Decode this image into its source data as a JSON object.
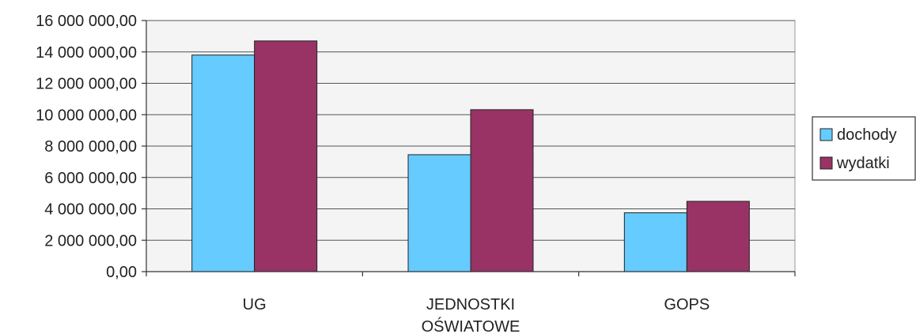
{
  "chart_data": {
    "type": "bar",
    "categories": [
      [
        "UG"
      ],
      [
        "JEDNOSTKI",
        "OŚWIATOWE"
      ],
      [
        "GOPS"
      ]
    ],
    "series": [
      {
        "name": "dochody",
        "values": [
          13800000,
          7450000,
          3750000
        ],
        "color": "#66ccff"
      },
      {
        "name": "wydatki",
        "values": [
          14700000,
          10320000,
          4480000
        ],
        "color": "#993366"
      }
    ],
    "ylim": [
      0,
      16000000
    ],
    "ytick_step": 2000000,
    "ytick_labels": [
      "0,00",
      "2 000 000,00",
      "4 000 000,00",
      "6 000 000,00",
      "8 000 000,00",
      "10 000 000,00",
      "12 000 000,00",
      "14 000 000,00",
      "16 000 000,00"
    ],
    "grid": true,
    "legend_position": "right",
    "plot_background": "#f4f4f4"
  }
}
